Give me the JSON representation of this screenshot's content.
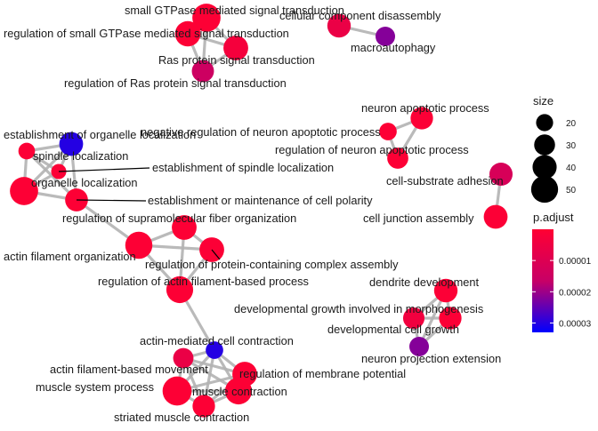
{
  "chart_data": {
    "type": "network",
    "title": "",
    "nodes": [
      {
        "id": "n1",
        "label": "small GTPase mediated signal transduction",
        "size": 52,
        "p_adjust": 5e-07
      },
      {
        "id": "n2",
        "label": "regulation of small GTPase mediated signal transduction",
        "size": 42,
        "p_adjust": 5e-07
      },
      {
        "id": "n3",
        "label": "Ras protein signal transduction",
        "size": 40,
        "p_adjust": 3e-06
      },
      {
        "id": "n4",
        "label": "regulation of Ras protein signal transduction",
        "size": 32,
        "p_adjust": 1.5e-05
      },
      {
        "id": "n5",
        "label": "cellular component disassembly",
        "size": 36,
        "p_adjust": 6e-06
      },
      {
        "id": "n6",
        "label": "macroautophagy",
        "size": 25,
        "p_adjust": 2.2e-05
      },
      {
        "id": "n7",
        "label": "neuron apoptotic process",
        "size": 33,
        "p_adjust": 1e-06
      },
      {
        "id": "n8",
        "label": "negative regulation of neuron apoptotic process",
        "size": 20,
        "p_adjust": 5e-07
      },
      {
        "id": "n9",
        "label": "regulation of neuron apoptotic process",
        "size": 29,
        "p_adjust": 5e-07
      },
      {
        "id": "n10",
        "label": "cell-substrate adhesion",
        "size": 35,
        "p_adjust": 1.2e-05
      },
      {
        "id": "n11",
        "label": "cell junction assembly",
        "size": 37,
        "p_adjust": 1e-06
      },
      {
        "id": "n12",
        "label": "establishment of organelle localization",
        "size": 37,
        "p_adjust": 3e-05
      },
      {
        "id": "n13",
        "label": "spindle localization",
        "size": 18,
        "p_adjust": 1e-06
      },
      {
        "id": "n14",
        "label": "establishment of spindle localization",
        "size": 15,
        "p_adjust": 1e-06
      },
      {
        "id": "n15",
        "label": "organelle localization",
        "size": 52,
        "p_adjust": 5e-07
      },
      {
        "id": "n16",
        "label": "establishment or maintenance of cell polarity",
        "size": 34,
        "p_adjust": 5e-07
      },
      {
        "id": "n17",
        "label": "regulation of supramolecular fiber organization",
        "size": 40,
        "p_adjust": 5e-07
      },
      {
        "id": "n18",
        "label": "actin filament organization",
        "size": 48,
        "p_adjust": 5e-07
      },
      {
        "id": "n19",
        "label": "regulation of protein-containing complex assembly",
        "size": 40,
        "p_adjust": 1e-06
      },
      {
        "id": "n20",
        "label": "regulation of actin filament-based process",
        "size": 47,
        "p_adjust": 5e-07
      },
      {
        "id": "n21",
        "label": "dendrite development",
        "size": 36,
        "p_adjust": 1e-06
      },
      {
        "id": "n22",
        "label": "developmental growth involved in morphogenesis",
        "size": 30,
        "p_adjust": 4e-06
      },
      {
        "id": "n23",
        "label": "developmental cell growth",
        "size": 33,
        "p_adjust": 1e-06
      },
      {
        "id": "n24",
        "label": "neuron projection extension",
        "size": 25,
        "p_adjust": 2.2e-05
      },
      {
        "id": "n25",
        "label": "actin-mediated cell contraction",
        "size": 20,
        "p_adjust": 3e-05
      },
      {
        "id": "n26",
        "label": "actin filament-based movement",
        "size": 27,
        "p_adjust": 6e-06
      },
      {
        "id": "n27",
        "label": "regulation of membrane potential",
        "size": 40,
        "p_adjust": 5e-07
      },
      {
        "id": "n28",
        "label": "muscle system process",
        "size": 55,
        "p_adjust": 5e-07
      },
      {
        "id": "n29",
        "label": "muscle contraction",
        "size": 47,
        "p_adjust": 5e-07
      },
      {
        "id": "n30",
        "label": "striated muscle contraction",
        "size": 33,
        "p_adjust": 5e-07
      }
    ],
    "edges": [
      [
        "n1",
        "n2"
      ],
      [
        "n1",
        "n3"
      ],
      [
        "n1",
        "n4"
      ],
      [
        "n2",
        "n3"
      ],
      [
        "n2",
        "n4"
      ],
      [
        "n3",
        "n4"
      ],
      [
        "n5",
        "n6"
      ],
      [
        "n7",
        "n8"
      ],
      [
        "n7",
        "n9"
      ],
      [
        "n8",
        "n9"
      ],
      [
        "n10",
        "n11"
      ],
      [
        "n12",
        "n13"
      ],
      [
        "n12",
        "n14"
      ],
      [
        "n12",
        "n15"
      ],
      [
        "n12",
        "n16"
      ],
      [
        "n13",
        "n14"
      ],
      [
        "n13",
        "n15"
      ],
      [
        "n14",
        "n15"
      ],
      [
        "n15",
        "n16"
      ],
      [
        "n13",
        "n16"
      ],
      [
        "n16",
        "n18"
      ],
      [
        "n17",
        "n18"
      ],
      [
        "n17",
        "n19"
      ],
      [
        "n17",
        "n20"
      ],
      [
        "n18",
        "n19"
      ],
      [
        "n18",
        "n20"
      ],
      [
        "n19",
        "n20"
      ],
      [
        "n20",
        "n25"
      ],
      [
        "n21",
        "n22"
      ],
      [
        "n21",
        "n23"
      ],
      [
        "n21",
        "n24"
      ],
      [
        "n22",
        "n23"
      ],
      [
        "n22",
        "n24"
      ],
      [
        "n23",
        "n24"
      ],
      [
        "n25",
        "n26"
      ],
      [
        "n25",
        "n27"
      ],
      [
        "n25",
        "n28"
      ],
      [
        "n25",
        "n29"
      ],
      [
        "n25",
        "n30"
      ],
      [
        "n26",
        "n27"
      ],
      [
        "n26",
        "n28"
      ],
      [
        "n26",
        "n29"
      ],
      [
        "n26",
        "n30"
      ],
      [
        "n27",
        "n28"
      ],
      [
        "n27",
        "n29"
      ],
      [
        "n27",
        "n30"
      ],
      [
        "n28",
        "n29"
      ],
      [
        "n28",
        "n30"
      ],
      [
        "n29",
        "n30"
      ]
    ],
    "legend_size": {
      "title": "size",
      "breaks": [
        20,
        30,
        40,
        50
      ]
    },
    "legend_color": {
      "title": "p.adjust",
      "breaks": [
        "0.00001",
        "0.00002",
        "0.00003"
      ],
      "domain": [
        0,
        3.3e-05
      ],
      "low_color": "#ff0033",
      "high_color": "#0000ff"
    },
    "edge_color": "#b3b3b3",
    "label_color": "#1a1a1a"
  }
}
